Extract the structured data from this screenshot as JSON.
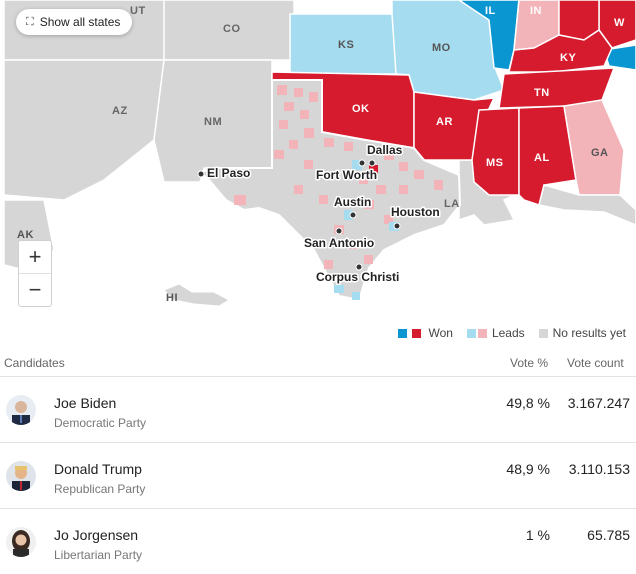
{
  "map": {
    "show_all_label": "Show all states",
    "states": [
      {
        "abbr": "UT"
      },
      {
        "abbr": "CO"
      },
      {
        "abbr": "KS"
      },
      {
        "abbr": "MO"
      },
      {
        "abbr": "IL"
      },
      {
        "abbr": "IN"
      },
      {
        "abbr": "W"
      },
      {
        "abbr": "KY"
      },
      {
        "abbr": "AZ"
      },
      {
        "abbr": "NM"
      },
      {
        "abbr": "OK"
      },
      {
        "abbr": "AR"
      },
      {
        "abbr": "TN"
      },
      {
        "abbr": "MS"
      },
      {
        "abbr": "AL"
      },
      {
        "abbr": "GA"
      },
      {
        "abbr": "LA"
      },
      {
        "abbr": "AK"
      },
      {
        "abbr": "HI"
      }
    ],
    "cities": [
      "Dallas",
      "Fort Worth",
      "El Paso",
      "Austin",
      "Houston",
      "San Antonio",
      "Corpus Christi"
    ],
    "zoom_in": "+",
    "zoom_out": "−"
  },
  "legend": {
    "won": "Won",
    "leads": "Leads",
    "no_results": "No results yet",
    "colors": {
      "dem": "#0a96d1",
      "rep": "#d51b2d",
      "dem_lead": "#a6dcf0",
      "rep_lead": "#f2b3b9",
      "none": "#d6d6d6"
    }
  },
  "table": {
    "headers": {
      "candidates": "Candidates",
      "vote_pct": "Vote %",
      "vote_count": "Vote count"
    },
    "rows": [
      {
        "name": "Joe Biden",
        "party": "Democratic Party",
        "pct": "49,8 %",
        "count": "3.167.247"
      },
      {
        "name": "Donald Trump",
        "party": "Republican Party",
        "pct": "48,9 %",
        "count": "3.110.153"
      },
      {
        "name": "Jo Jorgensen",
        "party": "Libertarian Party",
        "pct": "1 %",
        "count": "65.785"
      }
    ]
  }
}
